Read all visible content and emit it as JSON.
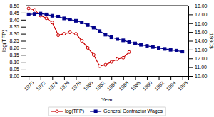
{
  "chart_data": {
    "type": "line",
    "xlabel": "Year",
    "ylabel": "log(TFP)",
    "y2label": "1990$",
    "x": [
      1970,
      1971,
      1972,
      1973,
      1974,
      1975,
      1976,
      1977,
      1978,
      1979,
      1980,
      1981,
      1982,
      1983,
      1984,
      1985,
      1986,
      1987,
      1988,
      1989,
      1990,
      1991,
      1992,
      1993,
      1994,
      1995,
      1996
    ],
    "series": [
      {
        "name": "log(TFP)",
        "color": "#cc0000",
        "marker": "circle",
        "axis": "y",
        "values": [
          8.48,
          8.47,
          8.43,
          8.41,
          8.38,
          8.29,
          8.3,
          8.31,
          8.3,
          8.25,
          8.2,
          8.15,
          8.07,
          8.08,
          8.1,
          8.12,
          8.13,
          8.17,
          null,
          null,
          null,
          null,
          null,
          null,
          null,
          null,
          null
        ]
      },
      {
        "name": "General Contractor Wages",
        "color": "#00008b",
        "marker": "square",
        "axis": "y2",
        "values": [
          17.0,
          17.05,
          17.1,
          17.0,
          16.85,
          16.75,
          16.55,
          16.42,
          16.28,
          16.1,
          15.8,
          15.5,
          15.1,
          14.7,
          14.4,
          14.2,
          14.05,
          13.85,
          13.7,
          13.55,
          13.42,
          13.3,
          13.18,
          13.08,
          12.98,
          12.88,
          12.78
        ]
      }
    ],
    "xlim": [
      1969.5,
      1997
    ],
    "xticks": [
      1970,
      1972,
      1974,
      1976,
      1978,
      1980,
      1982,
      1984,
      1986,
      1988,
      1990,
      1992,
      1994,
      1996
    ],
    "ylim": [
      8.0,
      8.5
    ],
    "yticks": [
      {
        "value": 8.0,
        "label": "8.00"
      },
      8.05,
      {
        "value": 8.1,
        "label": "8.10"
      },
      8.15,
      {
        "value": 8.2,
        "label": "8.20"
      },
      8.25,
      {
        "value": 8.3,
        "label": "8.30"
      },
      8.35,
      {
        "value": 8.4,
        "label": "8.40"
      },
      8.45,
      {
        "value": 8.5,
        "label": "8.50"
      }
    ],
    "y2lim": [
      10.0,
      18.0
    ],
    "y2ticks": [
      {
        "value": 10,
        "label": "10.00"
      },
      {
        "value": 11,
        "label": "11.00"
      },
      {
        "value": 12,
        "label": "12.00"
      },
      {
        "value": 13,
        "label": "13.00"
      },
      {
        "value": 14,
        "label": "14.00"
      },
      {
        "value": 15,
        "label": "15.00"
      },
      {
        "value": 16,
        "label": "16.00"
      },
      {
        "value": 17,
        "label": "17.00"
      },
      {
        "value": 18,
        "label": "18.00"
      }
    ],
    "grid": false,
    "legend": "bottom"
  }
}
